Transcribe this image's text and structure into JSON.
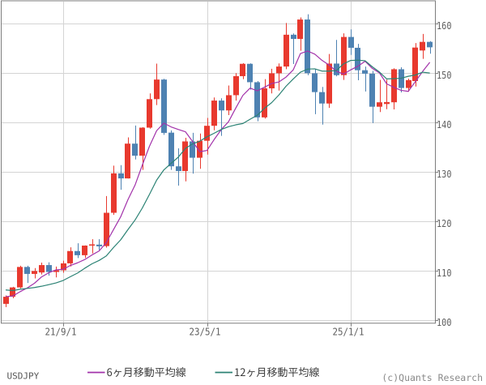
{
  "chart_data": {
    "type": "candlestick",
    "title": "USDJPY monthly candlestick chart with moving averages",
    "symbol": "USDJPY",
    "interval": "monthly",
    "x_axis": {
      "tick_labels": [
        "21/9/1",
        "23/5/1",
        "25/1/1"
      ],
      "tick_indices": [
        8,
        28,
        48
      ]
    },
    "y_axis": {
      "tick_labels": [
        "100",
        "110",
        "120",
        "130",
        "140",
        "150",
        "160"
      ],
      "ticks": [
        100,
        110,
        120,
        130,
        140,
        150,
        160
      ],
      "range": [
        99.25,
        165.4
      ],
      "side": "right"
    },
    "grid": true,
    "legend_position": "bottom",
    "candles": [
      {
        "t": "2021-01",
        "o": 103.24,
        "h": 104.95,
        "l": 102.59,
        "c": 104.68
      },
      {
        "t": "2021-02",
        "o": 104.68,
        "h": 106.69,
        "l": 104.4,
        "c": 106.57
      },
      {
        "t": "2021-03",
        "o": 106.57,
        "h": 110.97,
        "l": 106.37,
        "c": 110.72
      },
      {
        "t": "2021-04",
        "o": 110.72,
        "h": 110.97,
        "l": 107.48,
        "c": 109.31
      },
      {
        "t": "2021-05",
        "o": 109.31,
        "h": 110.5,
        "l": 108.4,
        "c": 109.9
      },
      {
        "t": "2021-06",
        "o": 109.6,
        "h": 111.6,
        "l": 109.2,
        "c": 111.1
      },
      {
        "t": "2021-07",
        "o": 111.1,
        "h": 111.66,
        "l": 108.95,
        "c": 109.7
      },
      {
        "t": "2021-08",
        "o": 109.7,
        "h": 110.8,
        "l": 108.6,
        "c": 110.05
      },
      {
        "t": "2021-09",
        "o": 110.05,
        "h": 112.0,
        "l": 109.55,
        "c": 111.45
      },
      {
        "t": "2021-10",
        "o": 111.45,
        "h": 114.7,
        "l": 110.82,
        "c": 113.95
      },
      {
        "t": "2021-11",
        "o": 113.95,
        "h": 115.52,
        "l": 112.53,
        "c": 113.1
      },
      {
        "t": "2021-12",
        "o": 113.1,
        "h": 115.1,
        "l": 112.55,
        "c": 115.05
      },
      {
        "t": "2022-01",
        "o": 115.05,
        "h": 116.35,
        "l": 113.47,
        "c": 115.3
      },
      {
        "t": "2022-02",
        "o": 115.25,
        "h": 116.34,
        "l": 114.16,
        "c": 114.9
      },
      {
        "t": "2022-03",
        "o": 114.95,
        "h": 125.1,
        "l": 114.65,
        "c": 121.7
      },
      {
        "t": "2022-04",
        "o": 121.7,
        "h": 131.25,
        "l": 121.28,
        "c": 129.7
      },
      {
        "t": "2022-05",
        "o": 129.7,
        "h": 131.35,
        "l": 126.36,
        "c": 128.67
      },
      {
        "t": "2022-06",
        "o": 128.67,
        "h": 136.99,
        "l": 128.65,
        "c": 135.72
      },
      {
        "t": "2022-07",
        "o": 135.72,
        "h": 139.38,
        "l": 132.5,
        "c": 133.27
      },
      {
        "t": "2022-08",
        "o": 133.27,
        "h": 139.06,
        "l": 130.4,
        "c": 138.96
      },
      {
        "t": "2022-09",
        "o": 138.96,
        "h": 145.9,
        "l": 138.75,
        "c": 144.74
      },
      {
        "t": "2022-10",
        "o": 144.74,
        "h": 151.94,
        "l": 143.53,
        "c": 148.71
      },
      {
        "t": "2022-11",
        "o": 148.71,
        "h": 148.85,
        "l": 137.5,
        "c": 137.9
      },
      {
        "t": "2022-12",
        "o": 137.95,
        "h": 138.4,
        "l": 130.4,
        "c": 131.12
      },
      {
        "t": "2023-01",
        "o": 131.12,
        "h": 134.77,
        "l": 127.22,
        "c": 130.17
      },
      {
        "t": "2023-02",
        "o": 130.17,
        "h": 136.91,
        "l": 128.08,
        "c": 136.17
      },
      {
        "t": "2023-03",
        "o": 136.17,
        "h": 137.91,
        "l": 129.63,
        "c": 132.86
      },
      {
        "t": "2023-04",
        "o": 132.86,
        "h": 137.77,
        "l": 130.62,
        "c": 136.3
      },
      {
        "t": "2023-05",
        "o": 136.3,
        "h": 140.93,
        "l": 133.5,
        "c": 139.34
      },
      {
        "t": "2023-06",
        "o": 139.34,
        "h": 145.07,
        "l": 138.42,
        "c": 144.45
      },
      {
        "t": "2023-07",
        "o": 144.45,
        "h": 144.91,
        "l": 137.3,
        "c": 142.45
      },
      {
        "t": "2023-08",
        "o": 142.45,
        "h": 147.5,
        "l": 141.5,
        "c": 145.54
      },
      {
        "t": "2023-09",
        "o": 145.54,
        "h": 150.0,
        "l": 144.44,
        "c": 149.4
      },
      {
        "t": "2023-10",
        "o": 149.4,
        "h": 152.05,
        "l": 148.8,
        "c": 151.9
      },
      {
        "t": "2023-11",
        "o": 151.9,
        "h": 152.0,
        "l": 146.67,
        "c": 148.17
      },
      {
        "t": "2023-12",
        "o": 148.17,
        "h": 148.4,
        "l": 140.25,
        "c": 141.04
      },
      {
        "t": "2024-01",
        "o": 141.04,
        "h": 148.8,
        "l": 140.8,
        "c": 146.92
      },
      {
        "t": "2024-02",
        "o": 146.92,
        "h": 150.89,
        "l": 145.9,
        "c": 149.98
      },
      {
        "t": "2024-03",
        "o": 149.98,
        "h": 151.97,
        "l": 146.48,
        "c": 151.35
      },
      {
        "t": "2024-04",
        "o": 151.35,
        "h": 160.17,
        "l": 150.8,
        "c": 157.8
      },
      {
        "t": "2024-05",
        "o": 157.8,
        "h": 158.05,
        "l": 151.86,
        "c": 156.95
      },
      {
        "t": "2024-06",
        "o": 156.95,
        "h": 161.3,
        "l": 154.55,
        "c": 160.88
      },
      {
        "t": "2024-07",
        "o": 160.88,
        "h": 161.95,
        "l": 149.6,
        "c": 150.0
      },
      {
        "t": "2024-08",
        "o": 149.98,
        "h": 150.88,
        "l": 141.68,
        "c": 146.17
      },
      {
        "t": "2024-09",
        "o": 146.17,
        "h": 147.21,
        "l": 139.58,
        "c": 143.85
      },
      {
        "t": "2024-10",
        "o": 143.85,
        "h": 153.88,
        "l": 142.97,
        "c": 151.95
      },
      {
        "t": "2024-11",
        "o": 151.95,
        "h": 156.74,
        "l": 149.37,
        "c": 149.6
      },
      {
        "t": "2024-12",
        "o": 149.6,
        "h": 158.08,
        "l": 148.64,
        "c": 157.35
      },
      {
        "t": "2025-01",
        "o": 157.35,
        "h": 158.88,
        "l": 153.7,
        "c": 155.15
      },
      {
        "t": "2025-02",
        "o": 155.15,
        "h": 155.95,
        "l": 148.57,
        "c": 150.6
      },
      {
        "t": "2025-03",
        "o": 150.6,
        "h": 151.35,
        "l": 146.3,
        "c": 149.9
      },
      {
        "t": "2025-04",
        "o": 149.9,
        "h": 150.49,
        "l": 139.89,
        "c": 143.2
      },
      {
        "t": "2025-05",
        "o": 143.2,
        "h": 148.65,
        "l": 142.12,
        "c": 144.1
      },
      {
        "t": "2025-06",
        "o": 143.75,
        "h": 148.7,
        "l": 142.7,
        "c": 144.15
      },
      {
        "t": "2025-07",
        "o": 144.1,
        "h": 151.0,
        "l": 142.65,
        "c": 150.8
      },
      {
        "t": "2025-08",
        "o": 150.8,
        "h": 151.2,
        "l": 146.1,
        "c": 147.0
      },
      {
        "t": "2025-09",
        "o": 147.0,
        "h": 148.9,
        "l": 146.25,
        "c": 148.6
      },
      {
        "t": "2025-10",
        "o": 148.4,
        "h": 156.1,
        "l": 147.3,
        "c": 155.2
      },
      {
        "t": "2025-11",
        "o": 154.6,
        "h": 157.95,
        "l": 152.9,
        "c": 156.35
      },
      {
        "t": "2025-12",
        "o": 156.35,
        "h": 156.5,
        "l": 153.95,
        "c": 155.25
      }
    ],
    "series": [
      {
        "name": "6ヶ月移動平均線",
        "key": "ma6",
        "color": "#a232aa",
        "values": [
          104.71,
          104.83,
          105.7,
          106.47,
          107.41,
          108.71,
          109.55,
          110.13,
          110.25,
          111.02,
          111.56,
          112.22,
          113.15,
          113.96,
          115.67,
          118.29,
          120.89,
          124.33,
          127.33,
          131.34,
          135.18,
          138.34,
          139.88,
          139.12,
          138.6,
          138.13,
          136.16,
          134.09,
          134.33,
          136.55,
          138.59,
          140.16,
          142.91,
          145.51,
          146.98,
          146.42,
          147.16,
          147.9,
          148.23,
          149.21,
          150.67,
          153.98,
          154.49,
          153.86,
          152.61,
          151.63,
          150.41,
          149.82,
          150.68,
          151.42,
          152.42,
          150.97,
          150.05,
          147.85,
          147.12,
          146.53,
          146.31,
          148.31,
          150.35,
          152.2
        ]
      },
      {
        "name": "12ヶ月移動平均線",
        "key": "ma12",
        "color": "#2b8274",
        "values": [
          106.06,
          105.93,
          106.2,
          106.37,
          106.55,
          106.81,
          107.13,
          107.48,
          107.98,
          108.75,
          109.48,
          110.46,
          111.35,
          112.04,
          112.96,
          114.66,
          116.22,
          118.27,
          120.24,
          122.65,
          125.42,
          128.32,
          130.39,
          131.72,
          132.96,
          134.74,
          135.67,
          136.22,
          137.1,
          137.83,
          138.6,
          139.15,
          139.53,
          139.8,
          140.66,
          141.48,
          142.88,
          144.03,
          145.57,
          147.36,
          148.83,
          150.2,
          150.83,
          150.88,
          150.42,
          150.42,
          150.54,
          151.9,
          152.59,
          152.64,
          152.52,
          151.3,
          150.23,
          148.84,
          148.9,
          148.97,
          149.37,
          149.64,
          150.2,
          150.03
        ]
      }
    ],
    "colors": {
      "up_candle": "#e8392e",
      "down_candle": "#4e82b2",
      "ma6_line": "#a232aa",
      "ma12_line": "#2b8274",
      "grid_line": "#d4d4d4",
      "plot_border": "#7d7d7d",
      "axis_text": "#5f5f5f",
      "background": "#ffffff"
    }
  },
  "footer": {
    "symbol_label": "USDJPY",
    "legend": [
      {
        "swatch_color": "#a232aa",
        "label": "6ヶ月移動平均線"
      },
      {
        "swatch_color": "#2b8274",
        "label": "12ヶ月移動平均線"
      }
    ],
    "credit": "(c)Quants Research"
  }
}
